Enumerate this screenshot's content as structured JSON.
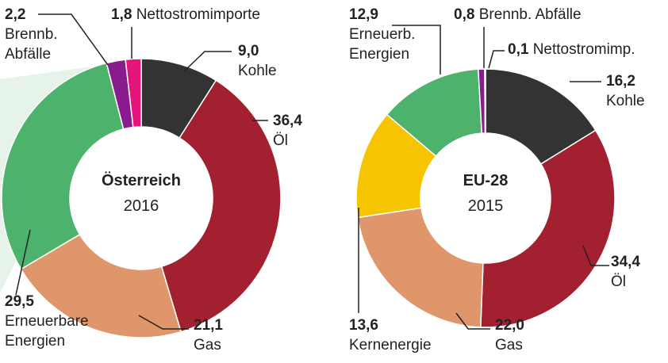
{
  "chart_data": [
    {
      "type": "pie",
      "title": "Österreich",
      "subtitle": "2016",
      "categories": [
        "Kohle",
        "Öl",
        "Gas",
        "Erneuerbare Energien",
        "Brennb. Abfälle",
        "Nettostromimporte"
      ],
      "values": [
        9.0,
        36.4,
        21.1,
        29.5,
        2.2,
        1.8
      ],
      "value_labels": [
        "9,0",
        "36,4",
        "21,1",
        "29,5",
        "2,2",
        "1,8"
      ],
      "colors": [
        "#333333",
        "#a2202f",
        "#df966b",
        "#4db36c",
        "#8a1b8c",
        "#e3147c"
      ]
    },
    {
      "type": "pie",
      "title": "EU-28",
      "subtitle": "2015",
      "categories": [
        "Kohle",
        "Öl",
        "Gas",
        "Kernenergie",
        "Erneuerb. Energien",
        "Brennb. Abfälle",
        "Nettostromimp."
      ],
      "values": [
        16.2,
        34.4,
        22.0,
        13.6,
        12.9,
        0.8,
        0.1
      ],
      "value_labels": [
        "16,2",
        "34,4",
        "22,0",
        "13,6",
        "12,9",
        "0,8",
        "0,1"
      ],
      "colors": [
        "#333333",
        "#a2202f",
        "#df966b",
        "#f6c400",
        "#4db36c",
        "#8a1b8c",
        "#e3147c"
      ]
    }
  ]
}
